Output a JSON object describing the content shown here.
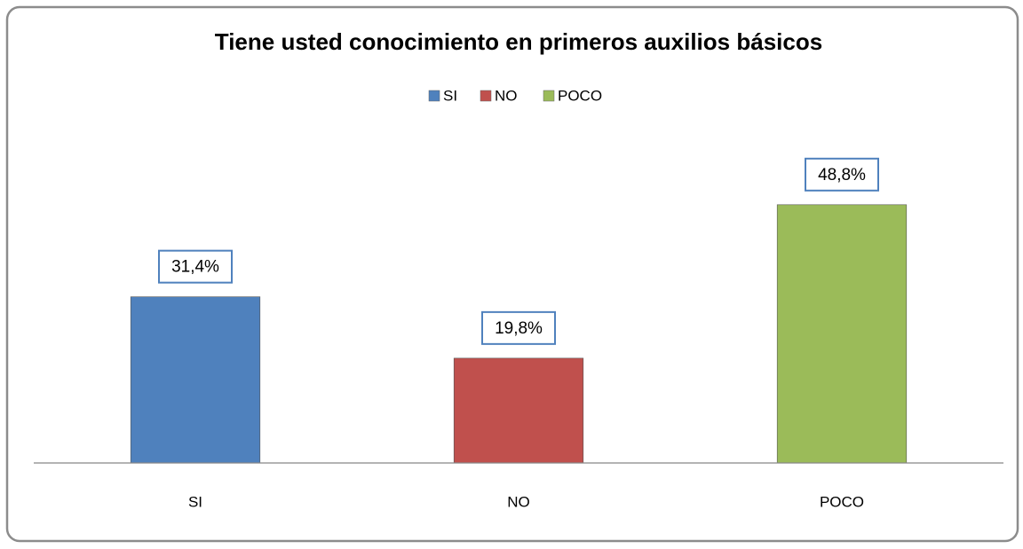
{
  "chart_data": {
    "type": "bar",
    "title": "Tiene usted conocimiento en primeros auxilios básicos",
    "categories": [
      "SI",
      "NO",
      "POCO"
    ],
    "series": [
      {
        "name": "SI",
        "color": "#4f81bd",
        "values": [
          31.4,
          null,
          null
        ],
        "value_labels": [
          "31,4%",
          null,
          null
        ]
      },
      {
        "name": "NO",
        "color": "#c0504d",
        "values": [
          null,
          19.8,
          null
        ],
        "value_labels": [
          null,
          "19,8%",
          null
        ]
      },
      {
        "name": "POCO",
        "color": "#9bbb59",
        "values": [
          null,
          null,
          48.8
        ],
        "value_labels": [
          null,
          null,
          "48,8%"
        ]
      }
    ],
    "ylim": [
      0,
      60
    ],
    "legend": "top"
  }
}
